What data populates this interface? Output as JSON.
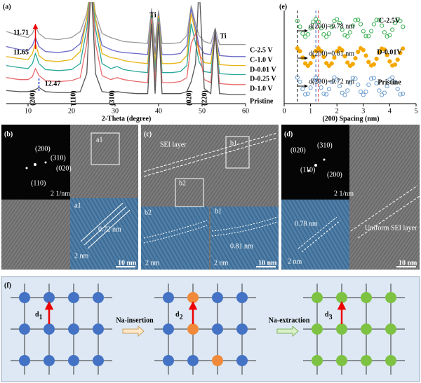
{
  "chart_data": [
    {
      "type": "line",
      "panel": "(a)",
      "xlabel": "2-Theta (degree)",
      "xlim": [
        5,
        60
      ],
      "xticks": [
        10,
        20,
        30,
        40,
        50,
        60
      ],
      "ylim": [
        0,
        100
      ],
      "x": [
        5,
        8,
        10,
        11,
        11.7,
        12.5,
        14,
        17,
        20,
        22,
        23.5,
        24.5,
        25.5,
        27,
        29,
        30.5,
        32,
        35,
        37.5,
        38.4,
        39.2,
        40,
        40.8,
        43,
        45,
        46.5,
        47.5,
        48.5,
        49.3,
        50.5,
        52,
        53,
        54,
        57,
        60
      ],
      "series": [
        {
          "name": "C-2.5 V",
          "color": "#9a9a9a",
          "values": [
            72,
            68,
            66,
            70,
            77,
            70,
            65,
            64,
            66,
            72,
            90,
            120,
            90,
            70,
            66,
            64,
            62,
            61,
            60,
            95,
            60,
            93,
            60,
            60,
            61,
            68,
            98,
            80,
            68,
            62,
            60,
            75,
            59,
            59,
            59
          ]
        },
        {
          "name": "C-1.0 V",
          "color": "#6a6ac8",
          "values": [
            57,
            54,
            53,
            58,
            66,
            57,
            52,
            51,
            53,
            60,
            85,
            120,
            85,
            58,
            54,
            52,
            51,
            50,
            49,
            92,
            49,
            90,
            49,
            49,
            50,
            58,
            95,
            75,
            58,
            50,
            49,
            72,
            48,
            47,
            47
          ]
        },
        {
          "name": "D-0.01 V",
          "color": "#e7b416",
          "values": [
            47,
            45,
            44,
            50,
            60,
            48,
            43,
            42,
            44,
            52,
            85,
            120,
            85,
            50,
            46,
            45,
            43,
            41,
            40,
            90,
            40,
            88,
            40,
            40,
            41,
            48,
            90,
            70,
            50,
            41,
            40,
            70,
            39,
            38,
            38
          ]
        },
        {
          "name": "D-0.25 V",
          "color": "#2aa89a",
          "values": [
            38,
            36,
            35,
            40,
            50,
            40,
            34,
            33,
            34,
            40,
            75,
            120,
            75,
            40,
            35,
            37,
            34,
            32,
            31,
            88,
            31,
            85,
            31,
            31,
            32,
            38,
            80,
            60,
            42,
            32,
            31,
            68,
            30,
            29,
            29
          ]
        },
        {
          "name": "D-1.0 V",
          "color": "#e8696b",
          "values": [
            26,
            24,
            24,
            27,
            35,
            28,
            23,
            22,
            23,
            26,
            60,
            120,
            60,
            28,
            24,
            26,
            24,
            22,
            21,
            85,
            21,
            82,
            21,
            21,
            22,
            26,
            60,
            70,
            55,
            24,
            21,
            70,
            20,
            19,
            19
          ]
        },
        {
          "name": "Pristine",
          "color": "#555555",
          "values": [
            13,
            12,
            12,
            13,
            14,
            16,
            12,
            11,
            11,
            12,
            30,
            120,
            30,
            12,
            11,
            12,
            11,
            10,
            10,
            80,
            10,
            80,
            10,
            10,
            10,
            12,
            22,
            40,
            120,
            15,
            10,
            75,
            10,
            9,
            9
          ]
        }
      ],
      "annotations": [
        "11.71",
        "11.65",
        "12.47",
        "(200)",
        "(110)",
        "(310)",
        "(020)",
        "(220)",
        "Ti",
        "Ti"
      ]
    },
    {
      "type": "scatter",
      "panel": "(e)",
      "xlabel": "(200) Spacing (nm)",
      "xlim": [
        0,
        5
      ],
      "xticks": [
        0,
        1,
        2,
        3,
        4,
        5
      ],
      "ylim": [
        0.4,
        3.6
      ],
      "x": [
        0.5,
        0.6,
        0.7,
        0.8,
        0.9,
        1.0,
        1.1,
        1.2,
        1.3,
        1.4,
        1.5,
        1.6,
        1.7,
        1.8,
        1.9,
        2.0,
        2.1,
        2.2,
        2.3,
        2.4,
        2.5,
        2.6,
        2.7,
        2.8,
        2.9,
        3.0,
        3.1,
        3.2,
        3.3,
        3.4,
        3.5,
        3.6,
        3.7,
        3.8,
        3.9,
        4.0,
        4.1,
        4.2,
        4.3,
        4.4,
        4.5
      ],
      "series": [
        {
          "name": "C-2.5V",
          "color": "#3cb054",
          "marker": "open",
          "values": [
            3.24,
            3.04,
            2.81,
            2.7,
            2.78,
            2.99,
            3.21,
            3.3,
            3.21,
            2.99,
            2.78,
            2.7,
            2.81,
            3.04,
            3.24,
            3.3,
            3.17,
            2.94,
            2.75,
            2.71,
            2.85,
            3.08,
            3.27,
            3.28,
            3.13,
            2.89,
            2.72,
            2.72,
            2.89,
            3.13,
            3.28,
            3.27,
            3.08,
            2.85,
            2.71,
            2.75,
            2.94,
            3.17,
            3.3,
            3.24,
            3.04
          ]
        },
        {
          "name": "D-0.01V",
          "color": "#f5a800",
          "marker": "filled",
          "values": [
            2.3,
            2.2,
            1.98,
            1.78,
            1.7,
            1.79,
            2.01,
            2.21,
            2.3,
            2.21,
            2.01,
            1.79,
            1.7,
            1.78,
            1.98,
            2.2,
            2.3,
            2.23,
            2.03,
            1.81,
            1.7,
            1.76,
            1.96,
            2.18,
            2.3,
            2.24,
            2.05,
            1.83,
            1.71,
            1.75,
            1.94,
            2.16,
            2.29,
            2.26,
            2.07,
            1.85,
            1.71,
            1.74,
            1.91,
            2.14,
            2.29
          ]
        },
        {
          "name": "Pristine",
          "color": "#6f9fd0",
          "marker": "open",
          "values": [
            1.3,
            1.15,
            0.9,
            0.72,
            0.74,
            0.95,
            1.19,
            1.3,
            1.19,
            0.95,
            0.74,
            0.72,
            0.9,
            1.15,
            1.3,
            1.23,
            1.0,
            0.77,
            0.7,
            0.85,
            1.1,
            1.28,
            1.26,
            1.05,
            0.81,
            0.7,
            0.81,
            1.05,
            1.26,
            1.28,
            1.1,
            0.85,
            0.7,
            0.77,
            1.0,
            1.23,
            1.3,
            1.15,
            0.9,
            0.72,
            0.74
          ]
        }
      ],
      "vlines": [
        {
          "x": 0.5,
          "color": "#000000"
        },
        {
          "x": 1.2,
          "color": "#3060c0"
        },
        {
          "x": 1.3,
          "color": "#e03030"
        }
      ],
      "annotations": [
        "d(200)=0.78 nm",
        "d(200)=0.81 nm",
        "d(200)=0.72 nm"
      ]
    }
  ],
  "micrographs": {
    "b": [
      "(b)",
      "(200)",
      "(310)",
      "(020)",
      "(110)",
      "2 1/nm",
      "a1",
      "a1",
      "0.72 nm",
      "2 nm",
      "10 nm"
    ],
    "c": [
      "(c)",
      "SEI layer",
      "b1",
      "b2",
      "b2",
      "b1",
      "0.81 nm",
      "2 nm",
      "2 nm",
      "10 nm"
    ],
    "d": [
      "(d)",
      "(020)",
      "(310)",
      "(110)",
      "(200)",
      "2 1/nm",
      "0.78 nm",
      "Uniform SEI layer",
      "2 nm",
      "10 nm"
    ]
  },
  "schematic": {
    "panel": "(f)",
    "d1": {
      "main": "d",
      "sub": "1"
    },
    "insertion": "Na-insertion",
    "d2": {
      "main": "d",
      "sub": "2"
    },
    "extraction": "Na-extraction",
    "d3": {
      "main": "d",
      "sub": "3"
    }
  }
}
